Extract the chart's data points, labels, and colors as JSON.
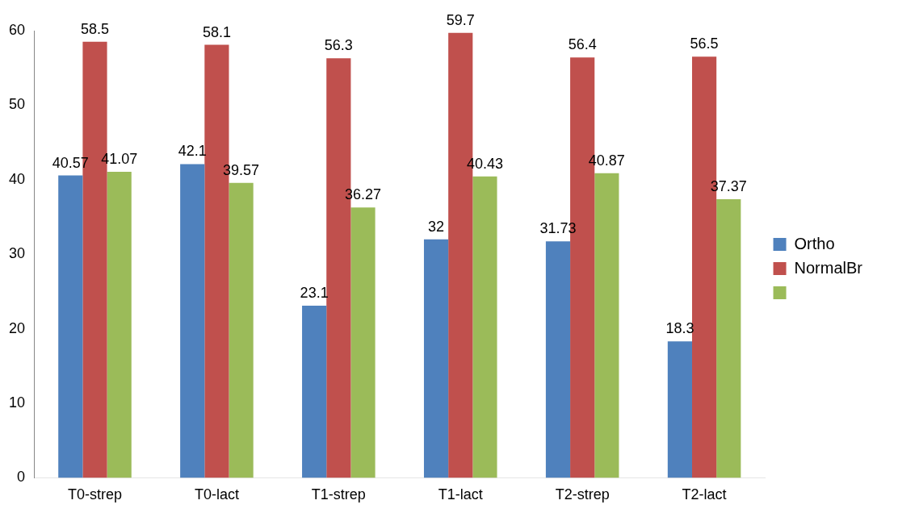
{
  "chart_data": {
    "type": "bar",
    "categories": [
      "T0-strep",
      "T0-lact",
      "T1-strep",
      "T1-lact",
      "T2-strep",
      "T2-lact"
    ],
    "series": [
      {
        "name": "Ortho",
        "color": "#4f81bd",
        "values": [
          40.57,
          42.1,
          23.1,
          32,
          31.73,
          18.3
        ]
      },
      {
        "name": "NormalBr",
        "color": "#c0504d",
        "values": [
          58.5,
          58.1,
          56.3,
          59.7,
          56.4,
          56.5
        ]
      },
      {
        "color": "#9bbb59",
        "values": [
          41.07,
          39.57,
          36.27,
          40.43,
          40.87,
          37.37
        ]
      }
    ],
    "ylim": [
      0,
      60
    ],
    "yticks": [
      0,
      10,
      20,
      30,
      40,
      50,
      60
    ],
    "grid": false,
    "legend": "right",
    "data_labels": true
  }
}
